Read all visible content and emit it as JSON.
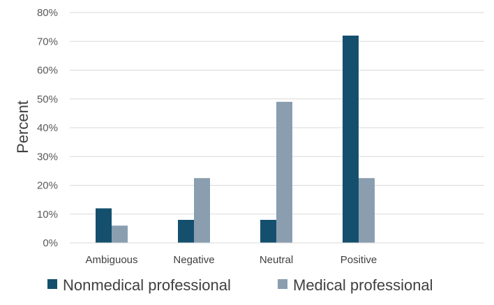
{
  "chart_data": {
    "type": "bar",
    "title": "",
    "xlabel": "",
    "ylabel": "Percent",
    "categories": [
      "Ambiguous",
      "Negative",
      "Neutral",
      "Positive"
    ],
    "series": [
      {
        "name": "Nonmedical professional",
        "color": "#14506e",
        "values": [
          12,
          8,
          8,
          72
        ]
      },
      {
        "name": "Medical professional",
        "color": "#8a9eb0",
        "values": [
          6,
          22.5,
          49,
          22.5
        ]
      }
    ],
    "ylim": [
      0,
      80
    ],
    "yticks": [
      "0%",
      "10%",
      "20%",
      "30%",
      "40%",
      "50%",
      "60%",
      "70%",
      "80%"
    ],
    "grid": true,
    "legend_position": "bottom"
  }
}
